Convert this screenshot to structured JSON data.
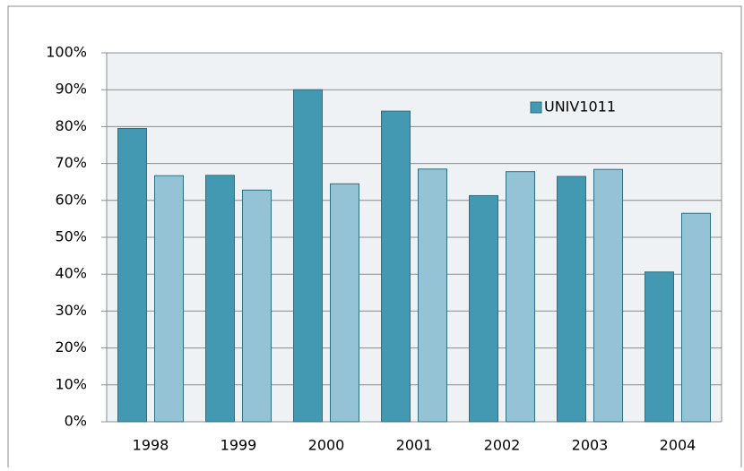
{
  "chart_data": {
    "type": "bar",
    "categories": [
      "1998",
      "1999",
      "2000",
      "2001",
      "2002",
      "2003",
      "2004"
    ],
    "series": [
      {
        "name": "UNIV1011",
        "color": "#4399b1",
        "values": [
          79.5,
          66.8,
          90,
          84.2,
          61.3,
          66.5,
          40.6
        ]
      },
      {
        "color": "#93c3d5",
        "values": [
          66.7,
          62.8,
          64.5,
          68.5,
          67.8,
          68.4,
          56.5
        ]
      }
    ],
    "ylim": [
      0,
      100
    ],
    "yticks": [
      {
        "value": 0,
        "label": "0%"
      },
      {
        "value": 10,
        "label": "10%"
      },
      {
        "value": 20,
        "label": "20%"
      },
      {
        "value": 30,
        "label": "30%"
      },
      {
        "value": 40,
        "label": "40%"
      },
      {
        "value": 50,
        "label": "50%"
      },
      {
        "value": 60,
        "label": "60%"
      },
      {
        "value": 70,
        "label": "70%"
      },
      {
        "value": 80,
        "label": "80%"
      },
      {
        "value": 90,
        "label": "90%"
      },
      {
        "value": 100,
        "label": "100%"
      }
    ],
    "grid": true,
    "legend": "upper-right"
  }
}
